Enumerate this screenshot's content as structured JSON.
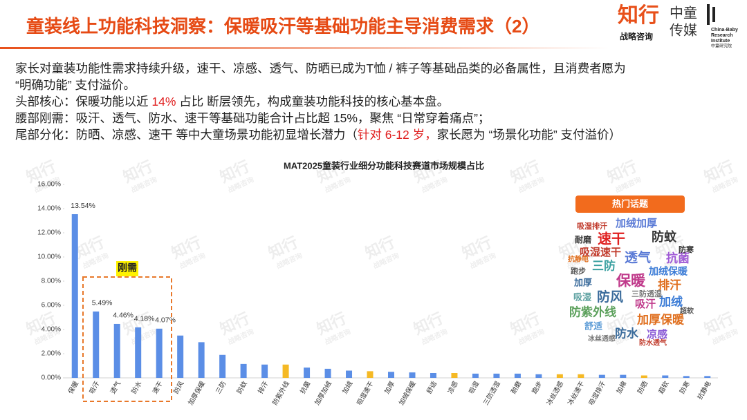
{
  "header": {
    "title": "童装线上功能科技洞察：保暖吸汗等基础功能主导消费需求（2）",
    "logo": {
      "brand": "知行",
      "brand_sub": "战略咨询",
      "media_1": "中童",
      "media_2": "传媒",
      "institute": [
        "China-Baby",
        "Research",
        "Institute"
      ],
      "institute_cn": "中童研究院"
    }
  },
  "body": [
    [
      "家长对童装功能性需求持续升级，速干、凉感、透气、防晒已成为T恤 / 裤子等基础品类的必备属性，且消费者愿为"
    ],
    [
      "“明确功能” 支付溢价。"
    ],
    [
      "头部核心：保暖功能以近 ",
      {
        "text": "14%",
        "color": "#e02020"
      },
      " 占比 断层领先，构成童装功能科技的核心基本盘。"
    ],
    [
      "腰部刚需：吸汗、透气、防水、速干等基础功能合计占比超 15%，聚焦 “日常穿着痛点”；"
    ],
    [
      "尾部分化：防晒、凉感、速干 等中大童场景功能初显增长潜力（",
      {
        "text": "针对 6-12 岁，",
        "color": "#e02020"
      },
      "家长愿为 “场景化功能” 支付溢价）"
    ]
  ],
  "watermark": [
    "知行",
    "战略咨询"
  ],
  "chart_data": {
    "type": "bar",
    "title": "MAT2025童装行业细分功能科技赛道市场规模占比",
    "categories": [
      "保暖",
      "吸汗",
      "透气",
      "防水",
      "速干",
      "防风",
      "加厚保暖",
      "三防",
      "防蚊",
      "排汗",
      "防紫外线",
      "抗菌",
      "加厚加绒",
      "加绒",
      "吸湿速干",
      "加厚",
      "加绒保暖",
      "舒适",
      "凉感",
      "吸湿",
      "三防透湿",
      "耐磨",
      "跑步",
      "冰丝透感",
      "冰丝速干",
      "吸湿排汗",
      "加棉",
      "防晒",
      "超软",
      "防寒",
      "抗静电"
    ],
    "values": [
      13.54,
      5.49,
      4.46,
      4.18,
      4.07,
      3.5,
      2.95,
      1.9,
      1.15,
      1.1,
      1.1,
      0.85,
      0.75,
      0.6,
      0.55,
      0.5,
      0.45,
      0.4,
      0.4,
      0.35,
      0.35,
      0.35,
      0.3,
      0.3,
      0.3,
      0.25,
      0.25,
      0.2,
      0.2,
      0.15,
      0.15
    ],
    "value_labels": [
      "13.54%",
      "5.49%",
      "4.46%",
      "4.18%",
      "4.07%",
      null,
      null,
      null,
      null,
      null,
      null,
      null,
      null,
      null,
      null,
      null,
      null,
      null,
      null,
      null,
      null,
      null,
      null,
      null,
      null,
      null,
      null,
      null,
      null,
      null,
      null
    ],
    "colors": [
      "#5b8ee6",
      "#5b8ee6",
      "#5b8ee6",
      "#5b8ee6",
      "#5b8ee6",
      "#5b8ee6",
      "#5b8ee6",
      "#5b8ee6",
      "#5b8ee6",
      "#5b8ee6",
      "#f5b925",
      "#5b8ee6",
      "#5b8ee6",
      "#5b8ee6",
      "#f5b925",
      "#5b8ee6",
      "#5b8ee6",
      "#5b8ee6",
      "#f5b925",
      "#5b8ee6",
      "#5b8ee6",
      "#5b8ee6",
      "#5b8ee6",
      "#f5b925",
      "#f5b925",
      "#5b8ee6",
      "#5b8ee6",
      "#f5b925",
      "#5b8ee6",
      "#5b8ee6",
      "#5b8ee6"
    ],
    "ylim": [
      0,
      16
    ],
    "yticks": [
      {
        "value": 0,
        "label": "0.00%"
      },
      {
        "value": 2,
        "label": "2.00%"
      },
      {
        "value": 4,
        "label": "4.00%"
      },
      {
        "value": 6,
        "label": "6.00%"
      },
      {
        "value": 8,
        "label": "8.00%"
      },
      {
        "value": 10,
        "label": "10.00%"
      },
      {
        "value": 12,
        "label": "12.00%"
      },
      {
        "value": 14,
        "label": "14.00%"
      },
      {
        "value": 16,
        "label": "16.00%"
      }
    ],
    "grid": false,
    "annotation": "刚需"
  },
  "word_cloud": {
    "title": "热门话题",
    "words": [
      "加绒加厚",
      "防蚊",
      "速干",
      "吸湿速干",
      "三防",
      "透气",
      "抗菌",
      "加绒保暖",
      "保暖",
      "排汗",
      "防风",
      "加绒",
      "防紫外线",
      "加厚保暖",
      "舒适",
      "防水",
      "凉感",
      "吸湿",
      "加厚",
      "耐磨",
      "跑步",
      "吸湿排汗",
      "三防透湿",
      "冰丝透感",
      "防水透气",
      "吸汗",
      "抗静电",
      "防寒",
      "超软"
    ]
  }
}
